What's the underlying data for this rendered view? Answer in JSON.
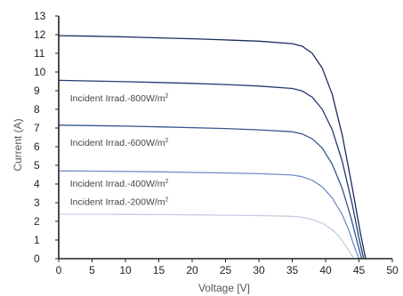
{
  "chart_data": {
    "type": "line",
    "title": "",
    "xlabel": "Voltage [V]",
    "ylabel": "Current (A)",
    "xlim": [
      0,
      50
    ],
    "ylim": [
      0,
      13
    ],
    "x_ticks": [
      0,
      5,
      10,
      15,
      20,
      25,
      30,
      35,
      40,
      45,
      50
    ],
    "y_ticks": [
      0,
      1,
      2,
      3,
      4,
      5,
      6,
      7,
      8,
      9,
      10,
      11,
      12,
      13
    ],
    "grid": false,
    "legend": "none",
    "series": [
      {
        "color": "#1a2c5b",
        "x": [
          0,
          5,
          10,
          15,
          20,
          25,
          30,
          35,
          36.5,
          38,
          39.5,
          41,
          42.5,
          44,
          45.2,
          46.0
        ],
        "y": [
          11.95,
          11.92,
          11.88,
          11.83,
          11.78,
          11.72,
          11.65,
          11.52,
          11.38,
          11.0,
          10.2,
          8.8,
          6.6,
          3.8,
          1.4,
          0
        ]
      },
      {
        "color": "#253a73",
        "x": [
          0,
          5,
          10,
          15,
          20,
          25,
          30,
          35,
          36.5,
          38,
          39.5,
          41,
          42.5,
          44,
          45.0,
          45.7
        ],
        "y": [
          9.55,
          9.52,
          9.48,
          9.44,
          9.39,
          9.33,
          9.25,
          9.12,
          8.98,
          8.65,
          8.0,
          6.9,
          5.2,
          2.9,
          1.1,
          0
        ]
      },
      {
        "color": "#35568f",
        "x": [
          0,
          5,
          10,
          15,
          20,
          25,
          30,
          35,
          36.5,
          38,
          39.5,
          41,
          42.5,
          43.8,
          44.8,
          45.4
        ],
        "y": [
          7.15,
          7.13,
          7.1,
          7.06,
          7.02,
          6.97,
          6.9,
          6.8,
          6.68,
          6.42,
          5.92,
          5.05,
          3.75,
          2.2,
          0.8,
          0
        ]
      },
      {
        "color": "#6f8ec4",
        "x": [
          0,
          5,
          10,
          15,
          20,
          25,
          30,
          35,
          36.5,
          38,
          39.5,
          41,
          42.5,
          43.5,
          44.4,
          45.0
        ],
        "y": [
          4.7,
          4.69,
          4.67,
          4.65,
          4.62,
          4.59,
          4.55,
          4.48,
          4.39,
          4.2,
          3.85,
          3.25,
          2.35,
          1.5,
          0.55,
          0
        ]
      },
      {
        "color": "#c4cee2",
        "x": [
          0,
          5,
          10,
          15,
          20,
          25,
          30,
          35,
          36.5,
          38,
          39.5,
          41,
          42.0,
          43.0,
          43.8,
          44.2
        ],
        "y": [
          2.38,
          2.38,
          2.37,
          2.36,
          2.35,
          2.33,
          2.31,
          2.27,
          2.22,
          2.1,
          1.9,
          1.55,
          1.2,
          0.7,
          0.25,
          0
        ]
      }
    ],
    "annotations": [
      {
        "text": "Incident Irrad.-800W/m",
        "sup": "2",
        "x": 1.7,
        "y": 8.42
      },
      {
        "text": "Incident Irrad.-600W/m",
        "sup": "2",
        "x": 1.7,
        "y": 6.05
      },
      {
        "text": "Incident Irrad.-400W/m",
        "sup": "2",
        "x": 1.7,
        "y": 3.85
      },
      {
        "text": "Incident Irrad.-200W/m",
        "sup": "2",
        "x": 1.7,
        "y": 2.88
      }
    ]
  }
}
